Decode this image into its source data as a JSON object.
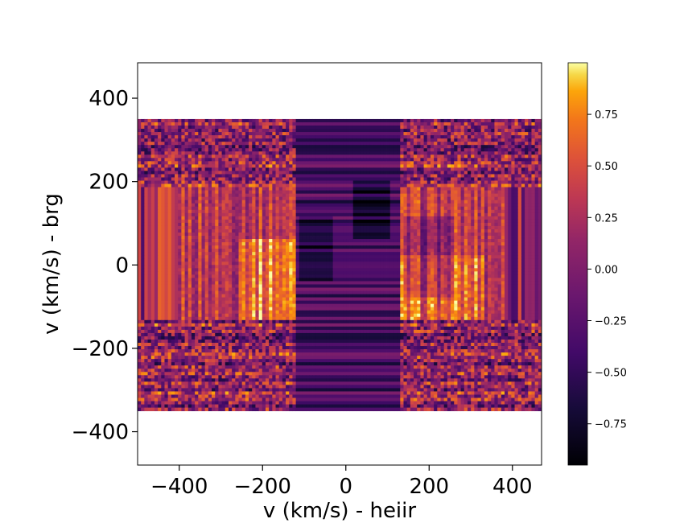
{
  "chart_data": {
    "type": "heatmap",
    "title": "",
    "xlabel": "v (km/s) - heiir",
    "ylabel": "v (km/s) - brg",
    "xlim": [
      -500,
      470
    ],
    "ylim": [
      -480,
      485
    ],
    "x_ticks": [
      -400,
      -200,
      0,
      200,
      400
    ],
    "y_ticks": [
      -400,
      -200,
      0,
      200,
      400
    ],
    "x_tick_labels": [
      "−400",
      "−200",
      "0",
      "200",
      "400"
    ],
    "y_tick_labels": [
      "−400",
      "−200",
      "0",
      "200",
      "400"
    ],
    "data_extent": {
      "x": [
        -500,
        470
      ],
      "y": [
        -350,
        350
      ]
    },
    "colormap": "inferno",
    "colorbar": {
      "range": [
        -0.95,
        1.0
      ],
      "ticks": [
        -0.75,
        -0.5,
        -0.25,
        0.0,
        0.25,
        0.5,
        0.75
      ],
      "tick_labels": [
        "−0.75",
        "−0.50",
        "−0.25",
        "0.00",
        "0.25",
        "0.50",
        "0.75"
      ]
    },
    "features": {
      "dark_band_x": [
        -120,
        130
      ],
      "bright_region_y": [
        -140,
        60
      ],
      "noisy_rows_y_above": 190,
      "noisy_rows_y_below": -135
    },
    "grid": false,
    "legend": "none"
  }
}
